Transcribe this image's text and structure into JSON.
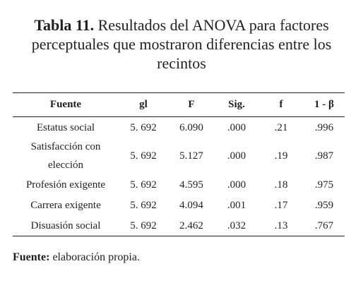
{
  "title": {
    "label": "Tabla 11.",
    "text": "Resultados del ANOVA para factores perceptuales que mostraron diferencias entre los recintos"
  },
  "table": {
    "header": [
      "Fuente",
      "gl",
      "F",
      "Sig.",
      "f",
      "1 - β"
    ],
    "rows": [
      [
        "Estatus social",
        "5. 692",
        "6.090",
        ".000",
        ".21",
        ".996"
      ],
      [
        "Satisfacción con elección",
        "5. 692",
        "5.127",
        ".000",
        ".19",
        ".987"
      ],
      [
        "Profesión exigente",
        "5. 692",
        "4.595",
        ".000",
        ".18",
        ".975"
      ],
      [
        "Carrera exigente",
        "5. 692",
        "4.094",
        ".001",
        ".17",
        ".959"
      ],
      [
        "Disuasión social",
        "5. 692",
        "2.462",
        ".032",
        ".13",
        ".767"
      ]
    ]
  },
  "footer": {
    "label": "Fuente:",
    "text": "elaboración propia."
  }
}
